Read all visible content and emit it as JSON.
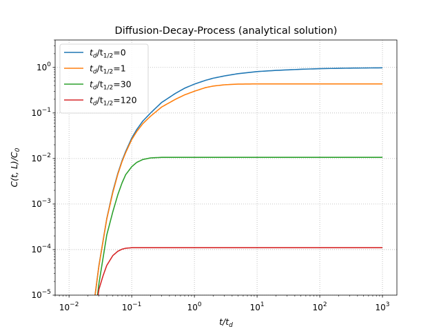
{
  "chart_data": {
    "type": "line",
    "title": "Diffusion-Decay-Process (analytical solution)",
    "xlabel": {
      "main": "t/t",
      "sub": "d"
    },
    "ylabel": {
      "main": "C(t, L)/C",
      "sub": "0"
    },
    "x_scale": "log",
    "y_scale": "log",
    "xlim": [
      0.006,
      1700
    ],
    "ylim": [
      1e-05,
      4
    ],
    "x_ticks": [
      {
        "value": 0.01,
        "base": "10",
        "exp": "−2"
      },
      {
        "value": 0.1,
        "base": "10",
        "exp": "−1"
      },
      {
        "value": 1,
        "base": "10",
        "exp": "0"
      },
      {
        "value": 10,
        "base": "10",
        "exp": "1"
      },
      {
        "value": 100,
        "base": "10",
        "exp": "2"
      },
      {
        "value": 1000,
        "base": "10",
        "exp": "3"
      }
    ],
    "y_ticks": [
      {
        "value": 1e-05,
        "base": "10",
        "exp": "−5"
      },
      {
        "value": 0.0001,
        "base": "10",
        "exp": "−4"
      },
      {
        "value": 0.001,
        "base": "10",
        "exp": "−3"
      },
      {
        "value": 0.01,
        "base": "10",
        "exp": "−2"
      },
      {
        "value": 0.1,
        "base": "10",
        "exp": "−1"
      },
      {
        "value": 1,
        "base": "10",
        "exp": "0"
      }
    ],
    "grid": true,
    "legend_position": "top-left",
    "series": [
      {
        "name": "t_d/t_1/2=0",
        "legend": {
          "a": "t",
          "a_sub": "d",
          "b": "/t",
          "b_sub": "1/2",
          "value": "=0"
        },
        "color": "#1f77b4",
        "x": [
          0.025,
          0.03,
          0.04,
          0.05,
          0.06,
          0.07,
          0.08,
          0.1,
          0.12,
          0.15,
          0.2,
          0.3,
          0.5,
          0.7,
          1,
          1.5,
          2,
          3,
          5,
          10,
          20,
          50,
          100,
          300,
          1000
        ],
        "y": [
          6.6e-06,
          4.5e-05,
          0.00048,
          0.0019,
          0.0047,
          0.0089,
          0.0142,
          0.028,
          0.043,
          0.066,
          0.1,
          0.17,
          0.27,
          0.35,
          0.43,
          0.52,
          0.58,
          0.65,
          0.73,
          0.81,
          0.86,
          0.91,
          0.94,
          0.965,
          0.98
        ]
      },
      {
        "name": "t_d/t_1/2=1",
        "legend": {
          "a": "t",
          "a_sub": "d",
          "b": "/t",
          "b_sub": "1/2",
          "value": "=1"
        },
        "color": "#ff7f0e",
        "x": [
          0.025,
          0.03,
          0.04,
          0.05,
          0.06,
          0.07,
          0.08,
          0.1,
          0.12,
          0.15,
          0.2,
          0.3,
          0.5,
          0.7,
          1,
          1.5,
          2,
          3,
          5,
          10,
          20,
          50,
          100,
          300,
          1000
        ],
        "y": [
          6.4e-06,
          4.4e-05,
          0.00047,
          0.0018,
          0.0045,
          0.0085,
          0.0134,
          0.026,
          0.039,
          0.058,
          0.085,
          0.135,
          0.2,
          0.25,
          0.3,
          0.36,
          0.39,
          0.415,
          0.43,
          0.435,
          0.435,
          0.435,
          0.435,
          0.435,
          0.435
        ]
      },
      {
        "name": "t_d/t_1/2=30",
        "legend": {
          "a": "t",
          "a_sub": "d",
          "b": "/t",
          "b_sub": "1/2",
          "value": "=30"
        },
        "color": "#2ca02c",
        "x": [
          0.027,
          0.03,
          0.04,
          0.05,
          0.06,
          0.07,
          0.08,
          0.1,
          0.12,
          0.15,
          0.2,
          0.3,
          0.5,
          1,
          10,
          100,
          1000
        ],
        "y": [
          5.5e-06,
          1.8e-05,
          0.00021,
          0.00068,
          0.0016,
          0.0029,
          0.0044,
          0.0066,
          0.0082,
          0.0095,
          0.0103,
          0.0106,
          0.0106,
          0.0106,
          0.0106,
          0.0106,
          0.0106
        ]
      },
      {
        "name": "t_d/t_1/2=120",
        "legend": {
          "a": "t",
          "a_sub": "d",
          "b": "/t",
          "b_sub": "1/2",
          "value": "=120"
        },
        "color": "#d62728",
        "x": [
          0.028,
          0.03,
          0.035,
          0.04,
          0.05,
          0.06,
          0.07,
          0.08,
          0.1,
          0.12,
          0.15,
          0.2,
          0.3,
          1,
          10,
          100,
          1000
        ],
        "y": [
          7e-06,
          1.34e-05,
          2.7e-05,
          4.5e-05,
          7.4e-05,
          9.2e-05,
          0.000102,
          0.000107,
          0.00011,
          0.00011,
          0.00011,
          0.00011,
          0.00011,
          0.00011,
          0.00011,
          0.00011,
          0.00011
        ]
      }
    ]
  }
}
